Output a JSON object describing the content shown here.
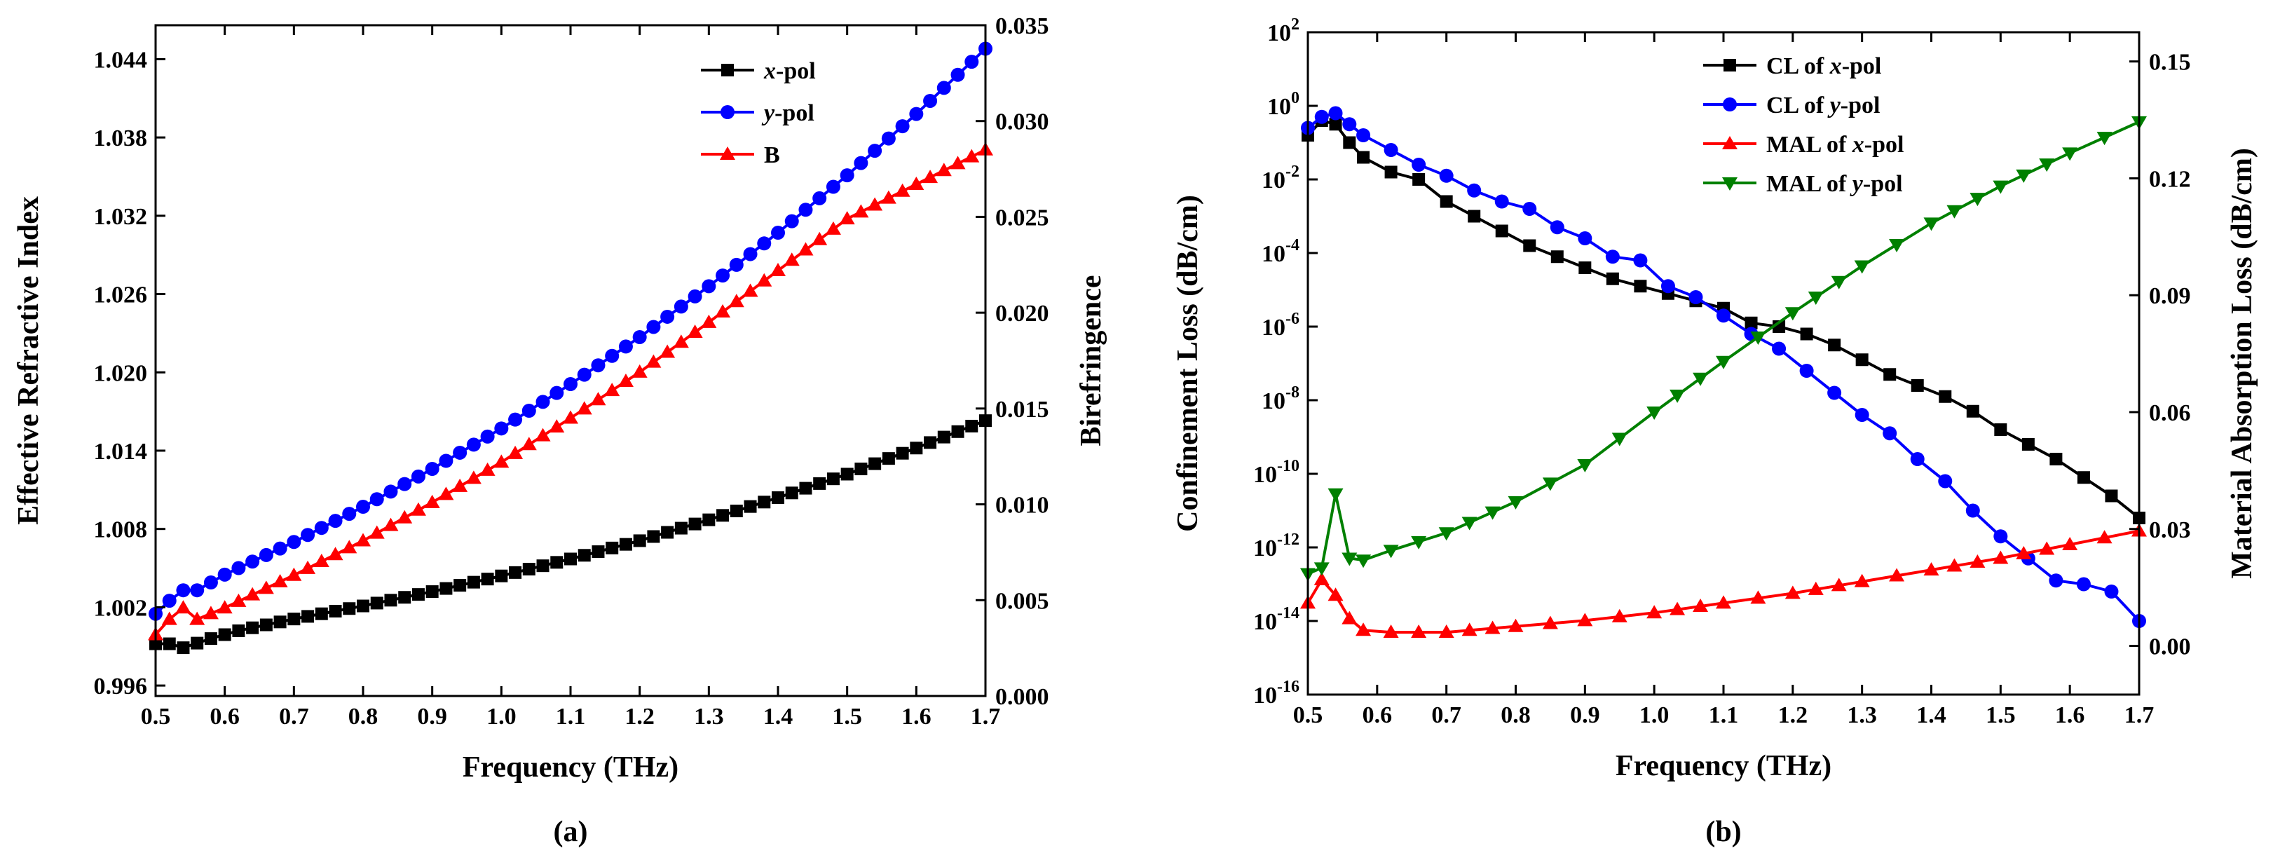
{
  "chart_data": [
    {
      "id": "a",
      "type": "line",
      "caption": "(a)",
      "xlabel": "Frequency (THz)",
      "ylabel": "Effective Refractive Index",
      "y2label": "Birefringence",
      "xlim": [
        0.5,
        1.7
      ],
      "ylim": [
        0.9952,
        1.0466
      ],
      "y2lim": [
        0.0,
        0.035
      ],
      "x_ticks": [
        "0.5",
        "0.6",
        "0.7",
        "0.8",
        "0.9",
        "1.0",
        "1.1",
        "1.2",
        "1.3",
        "1.4",
        "1.5",
        "1.6",
        "1.7"
      ],
      "y_ticks": [
        "0.996",
        "1.002",
        "1.008",
        "1.014",
        "1.020",
        "1.026",
        "1.032",
        "1.038",
        "1.044"
      ],
      "y2_ticks": [
        "0.000",
        "0.005",
        "0.010",
        "0.015",
        "0.020",
        "0.025",
        "0.030",
        "0.035"
      ],
      "legend_position": "top-right",
      "series": [
        {
          "name": "x-pol",
          "name_parts": [
            "x",
            "-pol"
          ],
          "color": "#000000",
          "marker": "square",
          "axis": "left",
          "points": [
            [
              0.5,
              0.9992
            ],
            [
              0.52,
              0.9992
            ],
            [
              0.54,
              0.9989
            ],
            [
              0.58,
              0.9996
            ],
            [
              0.62,
              1.0002
            ],
            [
              0.7,
              1.0011
            ],
            [
              0.8,
              1.0021
            ],
            [
              0.9,
              1.0032
            ],
            [
              1.0,
              1.0044
            ],
            [
              1.1,
              1.0057
            ],
            [
              1.2,
              1.0071
            ],
            [
              1.3,
              1.0087
            ],
            [
              1.4,
              1.0104
            ],
            [
              1.5,
              1.0122
            ],
            [
              1.6,
              1.0142
            ],
            [
              1.7,
              1.0163
            ]
          ]
        },
        {
          "name": "y-pol",
          "name_parts": [
            "y",
            "-pol"
          ],
          "color": "#0000ff",
          "marker": "circle",
          "axis": "left",
          "points": [
            [
              0.5,
              1.0015
            ],
            [
              0.52,
              1.0025
            ],
            [
              0.54,
              1.0033
            ],
            [
              0.56,
              1.0033
            ],
            [
              0.6,
              1.0045
            ],
            [
              0.7,
              1.007
            ],
            [
              0.8,
              1.0097
            ],
            [
              0.9,
              1.0126
            ],
            [
              1.0,
              1.0157
            ],
            [
              1.1,
              1.0191
            ],
            [
              1.2,
              1.0227
            ],
            [
              1.3,
              1.0266
            ],
            [
              1.4,
              1.0307
            ],
            [
              1.5,
              1.0351
            ],
            [
              1.6,
              1.0398
            ],
            [
              1.7,
              1.0448
            ]
          ]
        },
        {
          "name": "B",
          "name_parts": [
            "B",
            ""
          ],
          "color": "#ff0000",
          "marker": "triangle-up",
          "axis": "right",
          "points": [
            [
              0.5,
              0.0032
            ],
            [
              0.52,
              0.004
            ],
            [
              0.54,
              0.0046
            ],
            [
              0.56,
              0.004
            ],
            [
              0.6,
              0.0046
            ],
            [
              0.7,
              0.0063
            ],
            [
              0.8,
              0.0081
            ],
            [
              0.9,
              0.0101
            ],
            [
              1.0,
              0.0122
            ],
            [
              1.1,
              0.0145
            ],
            [
              1.2,
              0.0169
            ],
            [
              1.3,
              0.0195
            ],
            [
              1.4,
              0.0222
            ],
            [
              1.5,
              0.0249
            ],
            [
              1.6,
              0.0267
            ],
            [
              1.7,
              0.0285
            ]
          ]
        }
      ]
    },
    {
      "id": "b",
      "type": "line",
      "caption": "(b)",
      "xlabel": "Frequency (THz)",
      "ylabel": "Confinement Loss (dB/cm)",
      "y2label": "Material Absorption Loss (dB/cm)",
      "xlim": [
        0.5,
        1.7
      ],
      "ylim_log10": [
        -16,
        2
      ],
      "y2lim": [
        -0.0125,
        0.1575
      ],
      "x_ticks": [
        "0.5",
        "0.6",
        "0.7",
        "0.8",
        "0.9",
        "1.0",
        "1.1",
        "1.2",
        "1.3",
        "1.4",
        "1.5",
        "1.6",
        "1.7"
      ],
      "y_tick_exponents": [
        "-16",
        "-14",
        "-12",
        "-10",
        "-8",
        "-6",
        "-4",
        "-2",
        "0",
        "2"
      ],
      "y2_ticks": [
        "0.00",
        "0.03",
        "0.06",
        "0.09",
        "0.12",
        "0.15"
      ],
      "legend_position": "top",
      "series": [
        {
          "name": "CL of x-pol",
          "name_parts": [
            "CL of ",
            "x",
            "-pol"
          ],
          "color": "#000000",
          "marker": "square",
          "axis": "left",
          "scale": "log10",
          "points": [
            [
              0.5,
              -0.8
            ],
            [
              0.52,
              -0.4
            ],
            [
              0.54,
              -0.5
            ],
            [
              0.56,
              -1.0
            ],
            [
              0.58,
              -1.4
            ],
            [
              0.62,
              -1.8
            ],
            [
              0.66,
              -2.0
            ],
            [
              0.7,
              -2.6
            ],
            [
              0.74,
              -3.0
            ],
            [
              0.78,
              -3.4
            ],
            [
              0.82,
              -3.8
            ],
            [
              0.86,
              -4.1
            ],
            [
              0.9,
              -4.4
            ],
            [
              0.94,
              -4.7
            ],
            [
              0.98,
              -4.9
            ],
            [
              1.02,
              -5.1
            ],
            [
              1.06,
              -5.3
            ],
            [
              1.1,
              -5.5
            ],
            [
              1.14,
              -5.9
            ],
            [
              1.18,
              -6.0
            ],
            [
              1.22,
              -6.2
            ],
            [
              1.26,
              -6.5
            ],
            [
              1.3,
              -6.9
            ],
            [
              1.34,
              -7.3
            ],
            [
              1.38,
              -7.6
            ],
            [
              1.42,
              -7.9
            ],
            [
              1.46,
              -8.3
            ],
            [
              1.5,
              -8.8
            ],
            [
              1.54,
              -9.2
            ],
            [
              1.58,
              -9.6
            ],
            [
              1.62,
              -10.1
            ],
            [
              1.66,
              -10.6
            ],
            [
              1.7,
              -11.2
            ]
          ]
        },
        {
          "name": "CL of y-pol",
          "name_parts": [
            "CL of ",
            "y",
            "-pol"
          ],
          "color": "#0000ff",
          "marker": "circle",
          "axis": "left",
          "scale": "log10",
          "points": [
            [
              0.5,
              -0.6
            ],
            [
              0.52,
              -0.3
            ],
            [
              0.54,
              -0.2
            ],
            [
              0.56,
              -0.5
            ],
            [
              0.58,
              -0.8
            ],
            [
              0.62,
              -1.2
            ],
            [
              0.66,
              -1.6
            ],
            [
              0.7,
              -1.9
            ],
            [
              0.74,
              -2.3
            ],
            [
              0.78,
              -2.6
            ],
            [
              0.82,
              -2.8
            ],
            [
              0.86,
              -3.3
            ],
            [
              0.9,
              -3.6
            ],
            [
              0.94,
              -4.1
            ],
            [
              0.98,
              -4.2
            ],
            [
              1.02,
              -4.9
            ],
            [
              1.06,
              -5.2
            ],
            [
              1.1,
              -5.7
            ],
            [
              1.14,
              -6.2
            ],
            [
              1.18,
              -6.6
            ],
            [
              1.22,
              -7.2
            ],
            [
              1.26,
              -7.8
            ],
            [
              1.3,
              -8.4
            ],
            [
              1.34,
              -8.9
            ],
            [
              1.38,
              -9.6
            ],
            [
              1.42,
              -10.2
            ],
            [
              1.46,
              -11.0
            ],
            [
              1.5,
              -11.7
            ],
            [
              1.54,
              -12.3
            ],
            [
              1.58,
              -12.9
            ],
            [
              1.62,
              -13.0
            ],
            [
              1.66,
              -13.2
            ],
            [
              1.7,
              -14.0
            ]
          ]
        },
        {
          "name": "MAL of x-pol",
          "name_parts": [
            "MAL of ",
            "x",
            "-pol"
          ],
          "color": "#ff0000",
          "marker": "triangle-up",
          "axis": "right",
          "points": [
            [
              0.5,
              0.011
            ],
            [
              0.52,
              0.017
            ],
            [
              0.54,
              0.013
            ],
            [
              0.56,
              0.007
            ],
            [
              0.58,
              0.004
            ],
            [
              0.62,
              0.0035
            ],
            [
              0.7,
              0.0035
            ],
            [
              0.8,
              0.005
            ],
            [
              0.9,
              0.0065
            ],
            [
              1.0,
              0.0085
            ],
            [
              1.1,
              0.011
            ],
            [
              1.2,
              0.0135
            ],
            [
              1.3,
              0.0165
            ],
            [
              1.4,
              0.0195
            ],
            [
              1.5,
              0.0225
            ],
            [
              1.6,
              0.026
            ],
            [
              1.7,
              0.0295
            ]
          ]
        },
        {
          "name": "MAL of y-pol",
          "name_parts": [
            "MAL of ",
            "y",
            "-pol"
          ],
          "color": "#008000",
          "marker": "triangle-down",
          "axis": "right",
          "points": [
            [
              0.5,
              0.0185
            ],
            [
              0.52,
              0.02
            ],
            [
              0.54,
              0.039
            ],
            [
              0.56,
              0.0225
            ],
            [
              0.58,
              0.022
            ],
            [
              0.62,
              0.0245
            ],
            [
              0.7,
              0.029
            ],
            [
              0.8,
              0.037
            ],
            [
              0.9,
              0.0465
            ],
            [
              1.0,
              0.06
            ],
            [
              1.1,
              0.073
            ],
            [
              1.2,
              0.0855
            ],
            [
              1.3,
              0.0975
            ],
            [
              1.4,
              0.1085
            ],
            [
              1.5,
              0.118
            ],
            [
              1.6,
              0.1265
            ],
            [
              1.7,
              0.1345
            ]
          ]
        }
      ]
    }
  ]
}
